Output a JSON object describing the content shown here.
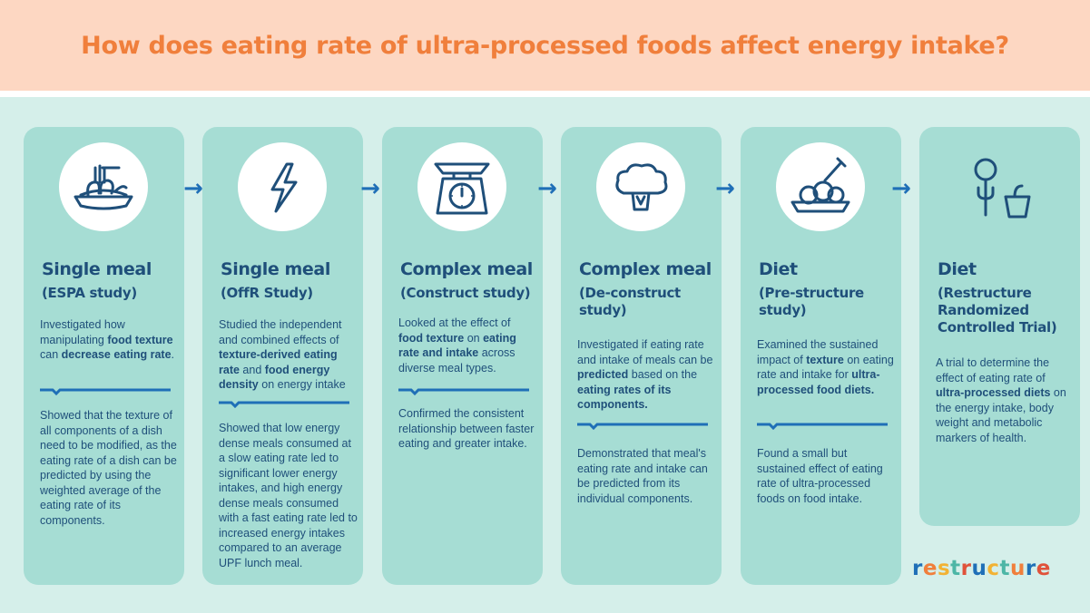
{
  "header": {
    "title": "How does eating rate of ultra-processed foods affect energy intake?"
  },
  "colors": {
    "accent": "#f07f3c",
    "navy": "#1f4f7a",
    "blue": "#1f6fb7",
    "teal": "#a6ddd4",
    "header_bg": "#fdd7c2"
  },
  "panels": [
    {
      "icon": "pasta-bowl-icon",
      "title": "Single meal",
      "subtitle_lines": [
        "(ESPA study)"
      ],
      "text1": [
        {
          "t": "Investigated how manipulating "
        },
        {
          "t": "food texture",
          "b": true
        },
        {
          "t": " can "
        },
        {
          "t": "decrease eating rate",
          "b": true
        },
        {
          "t": "."
        }
      ],
      "text2": [
        {
          "t": "Showed that the texture of all components of a dish need to be modified, as the eating rate of a dish can be predicted by using the weighted average of the eating rate of its components."
        }
      ]
    },
    {
      "icon": "lightning-bolt-icon",
      "title": "Single meal",
      "subtitle_lines": [
        "(OffR Study)"
      ],
      "text1": [
        {
          "t": "Studied the independent and combined effects of "
        },
        {
          "t": "texture-derived eating rate",
          "b": true
        },
        {
          "t": " and "
        },
        {
          "t": "food energy density",
          "b": true
        },
        {
          "t": " on energy intake"
        }
      ],
      "text2": [
        {
          "t": "Showed that low energy dense meals consumed at a slow eating rate led to significant lower energy intakes, and high energy dense meals consumed with a fast eating rate led to increased energy intakes compared to an average UPF lunch meal."
        }
      ]
    },
    {
      "icon": "kitchen-scale-icon",
      "title": "Complex meal",
      "subtitle_lines": [
        "(Construct study)"
      ],
      "text1": [
        {
          "t": "Looked at the effect of "
        },
        {
          "t": "food texture",
          "b": true
        },
        {
          "t": " on "
        },
        {
          "t": "eating rate and intake",
          "b": true
        },
        {
          "t": " across diverse meal types."
        }
      ],
      "text2": [
        {
          "t": "Confirmed the consistent relationship between faster eating and greater intake."
        }
      ]
    },
    {
      "icon": "broccoli-icon",
      "title": "Complex meal",
      "subtitle_lines": [
        "(De-construct",
        "study)"
      ],
      "text1": [
        {
          "t": "Investigated if eating rate and intake of meals can be "
        },
        {
          "t": "predicted",
          "b": true
        },
        {
          "t": " based on the "
        },
        {
          "t": "eating rates of its components.",
          "b": true
        }
      ],
      "text2": [
        {
          "t": "Demonstrated that meal's eating rate and intake can be predicted from its individual components."
        }
      ]
    },
    {
      "icon": "meatballs-fork-icon",
      "title": "Diet",
      "subtitle_lines": [
        "(Pre-structure",
        "study)"
      ],
      "text1": [
        {
          "t": "Examined the sustained impact of "
        },
        {
          "t": "texture",
          "b": true
        },
        {
          "t": " on eating rate and intake for "
        },
        {
          "t": "ultra-processed food diets.",
          "b": true
        }
      ],
      "text2": [
        {
          "t": "Found a small but sustained effect of eating rate of ultra-processed foods on food intake."
        }
      ]
    },
    {
      "icon": "fork-and-yogurt-icon",
      "title": "Diet",
      "subtitle_lines": [
        "(Restructure",
        "Randomized",
        "Controlled Trial)"
      ],
      "text1": [
        {
          "t": "A trial to determine the effect of eating rate of "
        },
        {
          "t": "ultra-processed diets",
          "b": true
        },
        {
          "t": " on the energy intake, body weight and metabolic markers of health."
        }
      ],
      "text2": []
    }
  ],
  "logo": {
    "letters": [
      "r",
      "e",
      "s",
      "t",
      "r",
      "u",
      "c",
      "t",
      "u",
      "r",
      "e"
    ],
    "colors": [
      "#1f6fb7",
      "#f07f3c",
      "#f2b233",
      "#4cb6a6",
      "#e0523a",
      "#1f6fb7",
      "#f2b233",
      "#4cb6a6",
      "#f07f3c",
      "#1f6fb7",
      "#e0523a"
    ]
  }
}
